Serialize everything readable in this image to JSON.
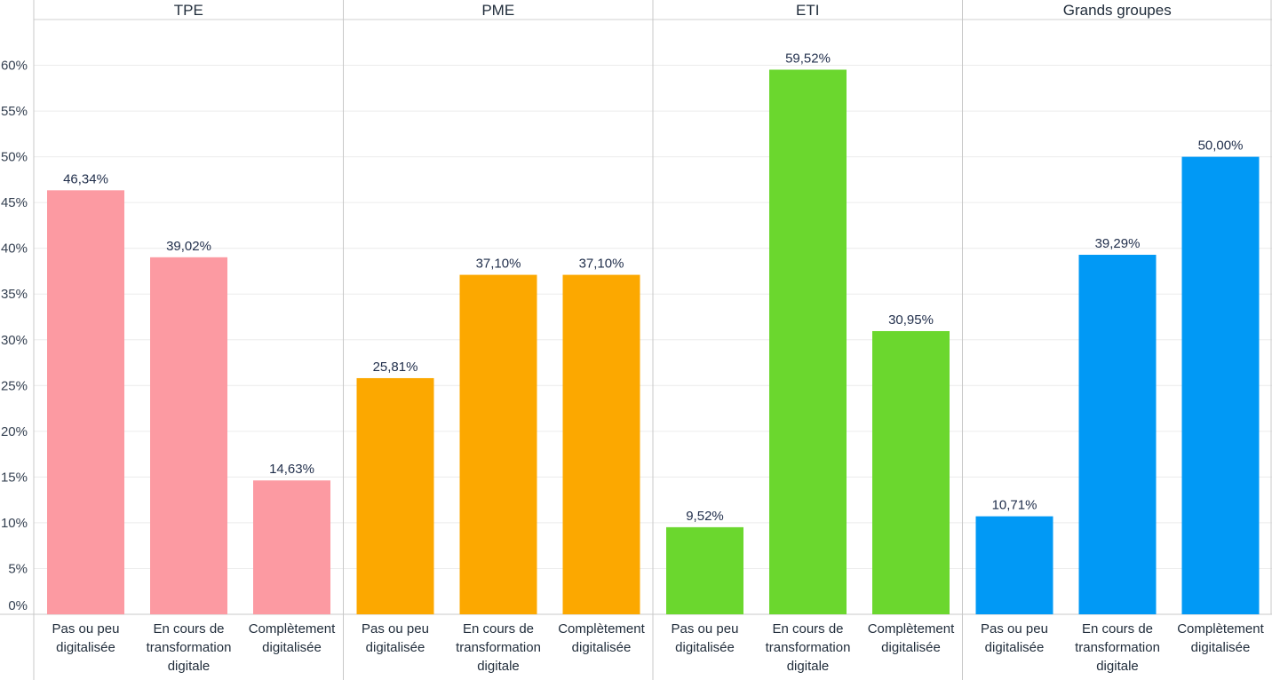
{
  "chart_data": {
    "type": "bar",
    "ylim": [
      0,
      0.65
    ],
    "y_ticks": [
      0,
      0.05,
      0.1,
      0.15,
      0.2,
      0.25,
      0.3,
      0.35,
      0.4,
      0.45,
      0.5,
      0.55,
      0.6
    ],
    "y_tick_labels": [
      "0%",
      "5%",
      "10%",
      "15%",
      "20%",
      "25%",
      "30%",
      "35%",
      "40%",
      "45%",
      "50%",
      "55%",
      "60%"
    ],
    "grid": true,
    "categories": [
      [
        "Pas ou peu",
        "digitalisée"
      ],
      [
        "En cours de",
        "transformation",
        "digitale"
      ],
      [
        "Complètement",
        "digitalisée"
      ]
    ],
    "panels": [
      {
        "name": "TPE",
        "color": "#fc9aa2",
        "values": [
          0.4634,
          0.3902,
          0.1463
        ],
        "labels": [
          "46,34%",
          "39,02%",
          "14,63%"
        ]
      },
      {
        "name": "PME",
        "color": "#fca800",
        "values": [
          0.2581,
          0.371,
          0.371
        ],
        "labels": [
          "25,81%",
          "37,10%",
          "37,10%"
        ]
      },
      {
        "name": "ETI",
        "color": "#6bd72e",
        "values": [
          0.0952,
          0.5952,
          0.3095
        ],
        "labels": [
          "9,52%",
          "59,52%",
          "30,95%"
        ]
      },
      {
        "name": "Grands groupes",
        "color": "#0199f5",
        "values": [
          0.1071,
          0.3929,
          0.5
        ],
        "labels": [
          "10,71%",
          "39,29%",
          "50,00%"
        ]
      }
    ]
  }
}
